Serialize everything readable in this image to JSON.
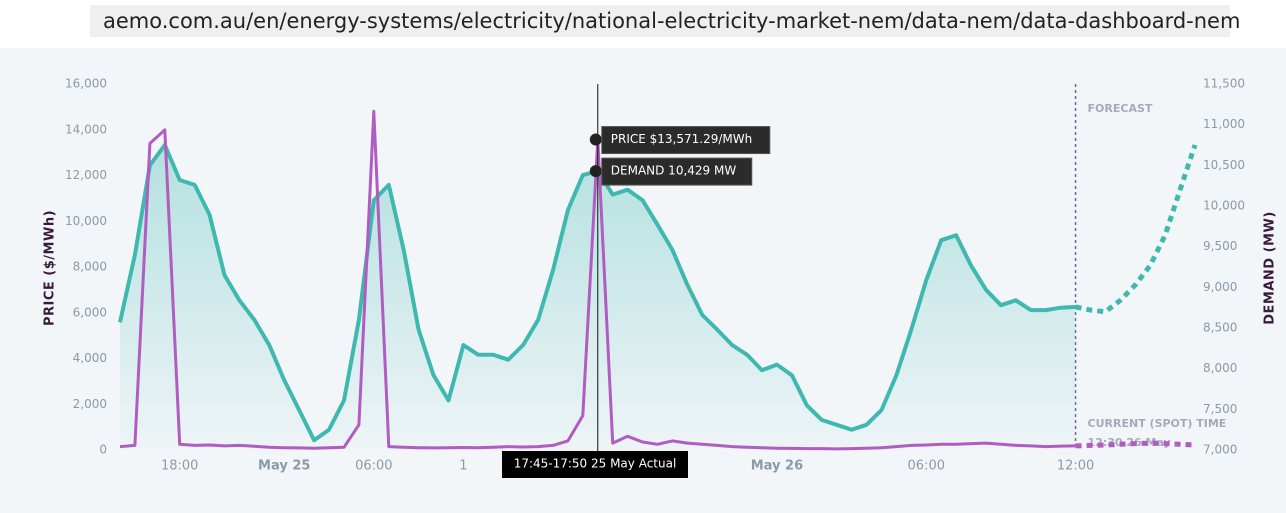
{
  "url": "aemo.com.au/en/energy-systems/electricity/national-electricity-market-nem/data-nem/data-dashboard-nem",
  "chart_data": {
    "type": "line",
    "ylabel": "PRICE ($/MWh)",
    "y2label": "DEMAND (MW)",
    "ylim": [
      0,
      16000
    ],
    "yticks": [
      0,
      {
        "value": 2000,
        "label": "2,000"
      },
      {
        "value": 4000,
        "label": "4,000"
      },
      {
        "value": 6000,
        "label": "6,000"
      },
      {
        "value": 8000,
        "label": "8,000"
      },
      {
        "value": 10000,
        "label": "10,000"
      },
      {
        "value": 12000,
        "label": "12,000"
      },
      {
        "value": 14000,
        "label": "14,000"
      },
      {
        "value": 16000,
        "label": "16,000"
      }
    ],
    "y2lim": [
      7000,
      11500
    ],
    "y2ticks": [
      {
        "value": 7000,
        "label": "7,000"
      },
      {
        "value": 7500,
        "label": "7,500"
      },
      {
        "value": 8000,
        "label": "8,000"
      },
      {
        "value": 8500,
        "label": "8,500"
      },
      {
        "value": 9000,
        "label": "9,000"
      },
      {
        "value": 9500,
        "label": "9,500"
      },
      {
        "value": 10000,
        "label": "10,000"
      },
      {
        "value": 10500,
        "label": "10,500"
      },
      {
        "value": 11000,
        "label": "11,000"
      },
      {
        "value": 11500,
        "label": "11,500"
      }
    ],
    "categories": [
      null,
      null,
      null,
      null,
      "18:00",
      null,
      null,
      null,
      null,
      null,
      null,
      "May 25",
      null,
      null,
      null,
      null,
      null,
      "06:00",
      null,
      null,
      null,
      null,
      null,
      "1",
      null,
      null,
      null,
      null,
      null,
      null,
      null,
      null,
      null,
      null,
      null,
      null,
      null,
      null,
      null,
      null,
      null,
      null,
      null,
      null,
      "May 26",
      null,
      null,
      null,
      null,
      null,
      null,
      null,
      null,
      null,
      "06:00",
      null,
      null,
      null,
      null,
      null,
      null,
      null,
      null,
      null,
      "12:00",
      null,
      null,
      null,
      null,
      null,
      null,
      null,
      null
    ],
    "series": [
      {
        "color": "#3fb8b0",
        "axis": "y2",
        "area": true,
        "values": [
          8570,
          9400,
          10500,
          10750,
          10320,
          10260,
          9890,
          9150,
          8840,
          8600,
          8290,
          7860,
          7490,
          7120,
          7250,
          7610,
          8600,
          10070,
          10260,
          9460,
          8480,
          7920,
          7610,
          8290,
          8170,
          8170,
          8110,
          8290,
          8600,
          9210,
          9950,
          10380,
          10429,
          10140,
          10200,
          10070,
          9770,
          9460,
          9030,
          8660,
          8480,
          8290,
          8170,
          7980,
          8050,
          7920,
          7550,
          7370,
          7310,
          7250,
          7310,
          7490,
          7920,
          8480,
          9090,
          9580,
          9640,
          9270,
          8970,
          8780,
          8840,
          8720,
          8720,
          8750,
          8760,
          null,
          null,
          null,
          null,
          null,
          null,
          null,
          null
        ]
      },
      {
        "color": "#3fb8b0",
        "axis": "y2",
        "dashed": true,
        "values": [
          null,
          null,
          null,
          null,
          null,
          null,
          null,
          null,
          null,
          null,
          null,
          null,
          null,
          null,
          null,
          null,
          null,
          null,
          null,
          null,
          null,
          null,
          null,
          null,
          null,
          null,
          null,
          null,
          null,
          null,
          null,
          null,
          null,
          null,
          null,
          null,
          null,
          null,
          null,
          null,
          null,
          null,
          null,
          null,
          null,
          null,
          null,
          null,
          null,
          null,
          null,
          null,
          null,
          null,
          null,
          null,
          null,
          null,
          null,
          null,
          null,
          null,
          null,
          null,
          8760,
          8720,
          8700,
          8840,
          9030,
          9270,
          9640,
          10200,
          10750
        ]
      },
      {
        "color": "#b05cc0",
        "axis": "y",
        "values": [
          150,
          200,
          13400,
          14000,
          250,
          200,
          220,
          180,
          200,
          160,
          120,
          100,
          90,
          80,
          100,
          120,
          1100,
          14800,
          150,
          120,
          100,
          90,
          100,
          110,
          100,
          120,
          150,
          130,
          150,
          200,
          400,
          1500,
          13571.29,
          300,
          600,
          350,
          250,
          400,
          300,
          250,
          200,
          150,
          120,
          100,
          80,
          70,
          60,
          60,
          50,
          60,
          80,
          100,
          150,
          200,
          220,
          250,
          250,
          280,
          300,
          250,
          200,
          180,
          150,
          170,
          180,
          null,
          null,
          null,
          null,
          null,
          null,
          null,
          null
        ]
      },
      {
        "color": "#b05cc0",
        "axis": "y",
        "dashed": true,
        "values": [
          null,
          null,
          null,
          null,
          null,
          null,
          null,
          null,
          null,
          null,
          null,
          null,
          null,
          null,
          null,
          null,
          null,
          null,
          null,
          null,
          null,
          null,
          null,
          null,
          null,
          null,
          null,
          null,
          null,
          null,
          null,
          null,
          null,
          null,
          null,
          null,
          null,
          null,
          null,
          null,
          null,
          null,
          null,
          null,
          null,
          null,
          null,
          null,
          null,
          null,
          null,
          null,
          null,
          null,
          null,
          null,
          null,
          null,
          null,
          null,
          null,
          null,
          null,
          null,
          180,
          200,
          220,
          250,
          280,
          300,
          280,
          250,
          220
        ]
      }
    ],
    "annotations": {
      "price_tooltip": "PRICE $13,571.29/MWh",
      "demand_tooltip": "DEMAND 10,429 MW",
      "time_tooltip": "17:45-17:50 25 May Actual",
      "forecast": "FORECAST",
      "current_label": "CURRENT (SPOT) TIME",
      "current_time": "12:30 26 May"
    }
  }
}
